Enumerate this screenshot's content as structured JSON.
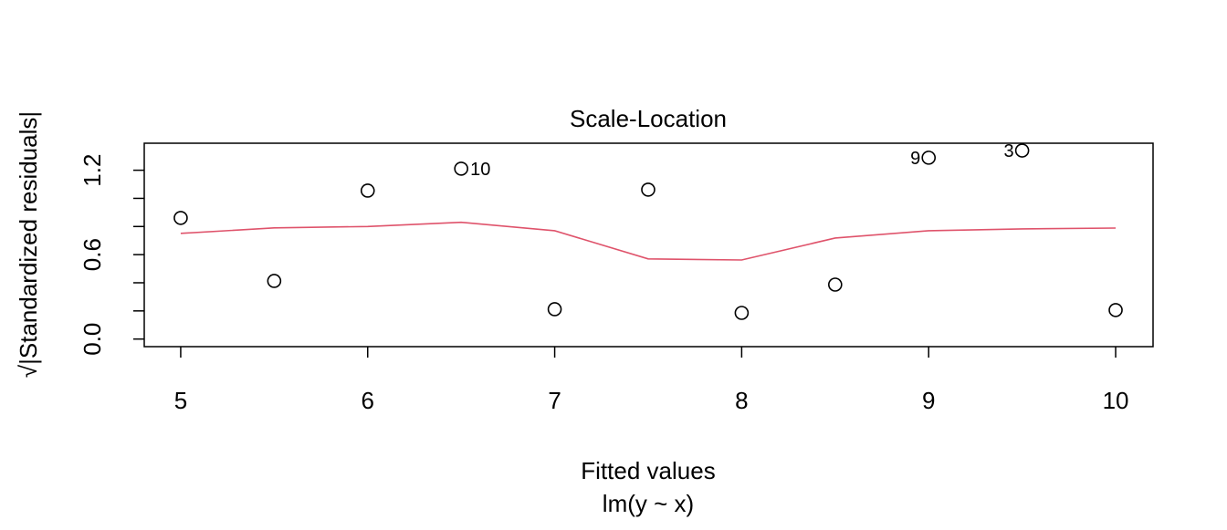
{
  "chart_data": {
    "type": "scatter",
    "title": "Scale-Location",
    "xlabel": "Fitted values",
    "subtitle": "lm(y ~ x)",
    "ylabel": "√|Standardized residuals|",
    "xlim": [
      4.805,
      10.2
    ],
    "ylim": [
      -0.054,
      1.392
    ],
    "xticks": [
      5,
      6,
      7,
      8,
      9,
      10
    ],
    "xtick_labels": [
      "5",
      "6",
      "7",
      "8",
      "9",
      "10"
    ],
    "yticks": [
      0.0,
      0.2,
      0.4,
      0.6,
      0.8,
      1.0,
      1.2
    ],
    "ytick_labels": [
      "0.0",
      "",
      "",
      "0.6",
      "",
      "",
      "1.2"
    ],
    "grid": false,
    "points": {
      "x": [
        5,
        5.5,
        6,
        6.5,
        7,
        7.5,
        8,
        8.5,
        9,
        9.5,
        10
      ],
      "y": [
        0.861,
        0.413,
        1.055,
        1.211,
        0.212,
        1.062,
        0.186,
        0.387,
        1.289,
        1.34,
        0.206
      ],
      "labels": [
        "",
        "",
        "",
        "10",
        "",
        "",
        "",
        "",
        "9",
        "3",
        ""
      ],
      "label_side": [
        "",
        "",
        "",
        "right",
        "",
        "",
        "",
        "",
        "left",
        "left",
        ""
      ]
    },
    "smoother": {
      "x": [
        5,
        5.5,
        6,
        6.5,
        7,
        7.5,
        8,
        8.5,
        9,
        9.5,
        10
      ],
      "y": [
        0.751,
        0.79,
        0.8,
        0.83,
        0.77,
        0.57,
        0.562,
        0.718,
        0.77,
        0.783,
        0.789
      ],
      "color": "#DF536B"
    }
  }
}
